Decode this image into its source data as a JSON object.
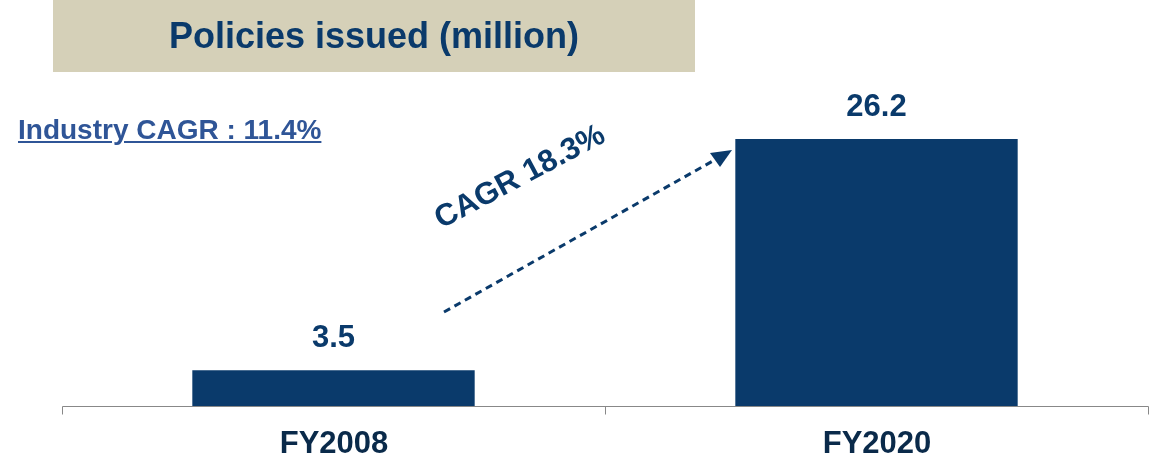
{
  "chart_data": {
    "type": "bar",
    "title": "Policies issued (million)",
    "categories": [
      "FY2008",
      "FY2020"
    ],
    "values": [
      3.5,
      26.2
    ],
    "color": "#0a3a6b",
    "data_labels": true,
    "annotations": [
      "Industry CAGR : 11.4%",
      "CAGR 18.3%"
    ]
  }
}
